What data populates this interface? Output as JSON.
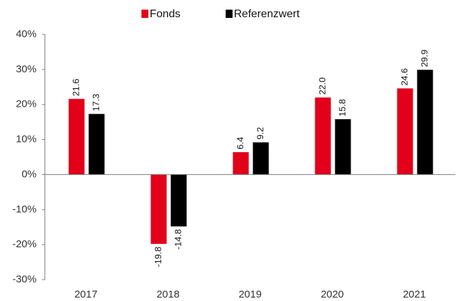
{
  "chart_data": {
    "type": "bar",
    "categories": [
      "2017",
      "2018",
      "2019",
      "2020",
      "2021"
    ],
    "series": [
      {
        "name": "Fonds",
        "color": "#e2001a",
        "values": [
          21.6,
          -19.8,
          6.4,
          22.0,
          24.6
        ],
        "value_labels": [
          "21.6",
          "-19.8",
          "6.4",
          "22.0",
          "24.6"
        ]
      },
      {
        "name": "Referenzwert",
        "color": "#000000",
        "values": [
          17.3,
          -14.8,
          9.2,
          15.8,
          29.9
        ],
        "value_labels": [
          "17.3",
          "-14.8",
          "9.2",
          "15.8",
          "29.9"
        ]
      }
    ],
    "ylim": [
      -30,
      40
    ],
    "yticks": [
      {
        "value": -30,
        "label": "-30%"
      },
      {
        "value": -20,
        "label": "-20%"
      },
      {
        "value": -10,
        "label": "-10%"
      },
      {
        "value": 0,
        "label": "0%"
      },
      {
        "value": 10,
        "label": "10%"
      },
      {
        "value": 20,
        "label": "20%"
      },
      {
        "value": 30,
        "label": "30%"
      },
      {
        "value": 40,
        "label": "40%"
      }
    ],
    "legend": "top",
    "grid": false
  }
}
